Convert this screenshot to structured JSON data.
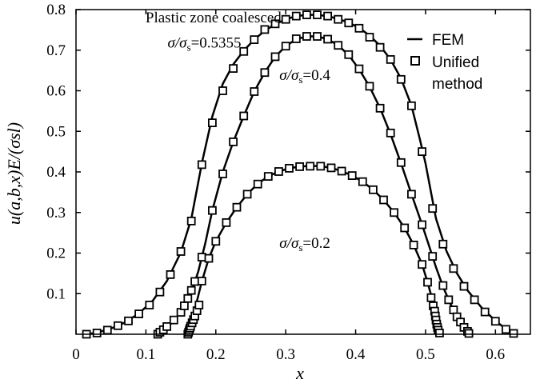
{
  "chart_data": {
    "type": "line",
    "xlabel": "x",
    "ylabel": "u(a,b,x)E/(σsl)",
    "xlim": [
      0,
      0.65
    ],
    "ylim": [
      0,
      0.8
    ],
    "xticks": [
      0,
      0.1,
      0.2,
      0.3,
      0.4,
      0.5,
      0.6
    ],
    "xtick_labels": [
      "0",
      "0.1",
      "0.2",
      "0.3",
      "0.4",
      "0.5",
      "0.6"
    ],
    "yticks": [
      0.1,
      0.2,
      0.3,
      0.4,
      0.5,
      0.6,
      0.7,
      0.8
    ],
    "ytick_labels": [
      "0.1",
      "0.2",
      "0.3",
      "0.4",
      "0.5",
      "0.6",
      "0.7",
      "0.8"
    ],
    "grid": false,
    "legend_position": "top-right",
    "legend": [
      {
        "label": "FEM",
        "style": "line"
      },
      {
        "label": "Unified\nmethod",
        "style": "square-marker"
      }
    ],
    "annotations": [
      {
        "text": "Plastic zone coalesced",
        "x": 0.0995,
        "y": 0.768
      },
      {
        "text": "σ/σs=0.5355",
        "x": 0.131,
        "y": 0.706
      },
      {
        "text": "σ/σs=0.4",
        "x": 0.291,
        "y": 0.627
      },
      {
        "text": "σ/σs=0.2",
        "x": 0.291,
        "y": 0.213
      }
    ],
    "series": [
      {
        "ratio": "0.5355",
        "line_points": [
          [
            0.015,
            0.0
          ],
          [
            0.03,
            0.004
          ],
          [
            0.05,
            0.014
          ],
          [
            0.07,
            0.029
          ],
          [
            0.09,
            0.051
          ],
          [
            0.11,
            0.083
          ],
          [
            0.13,
            0.131
          ],
          [
            0.15,
            0.202
          ],
          [
            0.165,
            0.285
          ],
          [
            0.18,
            0.421
          ],
          [
            0.195,
            0.537
          ],
          [
            0.21,
            0.617
          ],
          [
            0.225,
            0.665
          ],
          [
            0.24,
            0.699
          ],
          [
            0.255,
            0.726
          ],
          [
            0.27,
            0.748
          ],
          [
            0.285,
            0.764
          ],
          [
            0.3,
            0.776
          ],
          [
            0.315,
            0.784
          ],
          [
            0.33,
            0.787
          ],
          [
            0.345,
            0.787
          ],
          [
            0.36,
            0.784
          ],
          [
            0.375,
            0.777
          ],
          [
            0.39,
            0.768
          ],
          [
            0.405,
            0.755
          ],
          [
            0.42,
            0.736
          ],
          [
            0.435,
            0.711
          ],
          [
            0.45,
            0.677
          ],
          [
            0.465,
            0.63
          ],
          [
            0.48,
            0.563
          ],
          [
            0.492,
            0.48
          ],
          [
            0.5,
            0.421
          ],
          [
            0.515,
            0.285
          ],
          [
            0.53,
            0.205
          ],
          [
            0.545,
            0.15
          ],
          [
            0.56,
            0.108
          ],
          [
            0.58,
            0.066
          ],
          [
            0.6,
            0.033
          ],
          [
            0.615,
            0.013
          ],
          [
            0.626,
            0.002
          ]
        ],
        "marker_points": [
          [
            0.015,
            0.0
          ],
          [
            0.03,
            0.003
          ],
          [
            0.045,
            0.01
          ],
          [
            0.06,
            0.021
          ],
          [
            0.075,
            0.033
          ],
          [
            0.09,
            0.05
          ],
          [
            0.105,
            0.072
          ],
          [
            0.12,
            0.104
          ],
          [
            0.135,
            0.147
          ],
          [
            0.15,
            0.204
          ],
          [
            0.165,
            0.279
          ],
          [
            0.18,
            0.418
          ],
          [
            0.195,
            0.521
          ],
          [
            0.21,
            0.6
          ],
          [
            0.225,
            0.655
          ],
          [
            0.24,
            0.697
          ],
          [
            0.255,
            0.726
          ],
          [
            0.27,
            0.751
          ],
          [
            0.285,
            0.765
          ],
          [
            0.3,
            0.776
          ],
          [
            0.315,
            0.784
          ],
          [
            0.33,
            0.787
          ],
          [
            0.345,
            0.787
          ],
          [
            0.36,
            0.784
          ],
          [
            0.375,
            0.776
          ],
          [
            0.39,
            0.767
          ],
          [
            0.405,
            0.754
          ],
          [
            0.42,
            0.732
          ],
          [
            0.435,
            0.707
          ],
          [
            0.45,
            0.677
          ],
          [
            0.465,
            0.628
          ],
          [
            0.48,
            0.563
          ],
          [
            0.495,
            0.45
          ],
          [
            0.51,
            0.31
          ],
          [
            0.525,
            0.222
          ],
          [
            0.54,
            0.162
          ],
          [
            0.555,
            0.118
          ],
          [
            0.57,
            0.085
          ],
          [
            0.585,
            0.055
          ],
          [
            0.6,
            0.032
          ],
          [
            0.615,
            0.012
          ],
          [
            0.626,
            0.002
          ]
        ]
      },
      {
        "ratio": "0.4",
        "line_points": [
          [
            0.115,
            0.0
          ],
          [
            0.125,
            0.01
          ],
          [
            0.14,
            0.032
          ],
          [
            0.155,
            0.068
          ],
          [
            0.165,
            0.103
          ],
          [
            0.175,
            0.155
          ],
          [
            0.185,
            0.225
          ],
          [
            0.195,
            0.305
          ],
          [
            0.21,
            0.4
          ],
          [
            0.225,
            0.474
          ],
          [
            0.24,
            0.538
          ],
          [
            0.255,
            0.598
          ],
          [
            0.27,
            0.645
          ],
          [
            0.285,
            0.684
          ],
          [
            0.3,
            0.71
          ],
          [
            0.315,
            0.727
          ],
          [
            0.33,
            0.734
          ],
          [
            0.345,
            0.734
          ],
          [
            0.36,
            0.727
          ],
          [
            0.375,
            0.712
          ],
          [
            0.39,
            0.688
          ],
          [
            0.405,
            0.653
          ],
          [
            0.42,
            0.61
          ],
          [
            0.435,
            0.557
          ],
          [
            0.45,
            0.493
          ],
          [
            0.465,
            0.421
          ],
          [
            0.48,
            0.345
          ],
          [
            0.495,
            0.27
          ],
          [
            0.505,
            0.218
          ],
          [
            0.515,
            0.165
          ],
          [
            0.525,
            0.117
          ],
          [
            0.535,
            0.077
          ],
          [
            0.545,
            0.043
          ],
          [
            0.555,
            0.017
          ],
          [
            0.562,
            0.003
          ]
        ],
        "marker_points": [
          [
            0.117,
            0.0
          ],
          [
            0.12,
            0.005
          ],
          [
            0.125,
            0.011
          ],
          [
            0.13,
            0.019
          ],
          [
            0.14,
            0.035
          ],
          [
            0.15,
            0.054
          ],
          [
            0.155,
            0.07
          ],
          [
            0.16,
            0.088
          ],
          [
            0.165,
            0.108
          ],
          [
            0.17,
            0.13
          ],
          [
            0.18,
            0.19
          ],
          [
            0.195,
            0.305
          ],
          [
            0.21,
            0.395
          ],
          [
            0.225,
            0.474
          ],
          [
            0.24,
            0.538
          ],
          [
            0.255,
            0.598
          ],
          [
            0.27,
            0.645
          ],
          [
            0.285,
            0.684
          ],
          [
            0.3,
            0.71
          ],
          [
            0.315,
            0.728
          ],
          [
            0.33,
            0.734
          ],
          [
            0.345,
            0.734
          ],
          [
            0.36,
            0.727
          ],
          [
            0.375,
            0.712
          ],
          [
            0.39,
            0.689
          ],
          [
            0.405,
            0.654
          ],
          [
            0.42,
            0.611
          ],
          [
            0.435,
            0.557
          ],
          [
            0.45,
            0.496
          ],
          [
            0.465,
            0.423
          ],
          [
            0.48,
            0.345
          ],
          [
            0.495,
            0.27
          ],
          [
            0.51,
            0.192
          ],
          [
            0.525,
            0.12
          ],
          [
            0.533,
            0.085
          ],
          [
            0.54,
            0.06
          ],
          [
            0.545,
            0.043
          ],
          [
            0.55,
            0.03
          ],
          [
            0.555,
            0.017
          ],
          [
            0.56,
            0.007
          ],
          [
            0.562,
            0.002
          ]
        ]
      },
      {
        "ratio": "0.2",
        "line_points": [
          [
            0.16,
            0.0
          ],
          [
            0.163,
            0.015
          ],
          [
            0.167,
            0.04
          ],
          [
            0.172,
            0.075
          ],
          [
            0.18,
            0.13
          ],
          [
            0.19,
            0.187
          ],
          [
            0.2,
            0.229
          ],
          [
            0.215,
            0.275
          ],
          [
            0.23,
            0.313
          ],
          [
            0.245,
            0.345
          ],
          [
            0.26,
            0.371
          ],
          [
            0.275,
            0.389
          ],
          [
            0.29,
            0.401
          ],
          [
            0.305,
            0.409
          ],
          [
            0.32,
            0.413
          ],
          [
            0.335,
            0.415
          ],
          [
            0.35,
            0.414
          ],
          [
            0.365,
            0.41
          ],
          [
            0.38,
            0.402
          ],
          [
            0.395,
            0.391
          ],
          [
            0.41,
            0.376
          ],
          [
            0.425,
            0.356
          ],
          [
            0.44,
            0.331
          ],
          [
            0.455,
            0.3
          ],
          [
            0.47,
            0.262
          ],
          [
            0.483,
            0.22
          ],
          [
            0.495,
            0.172
          ],
          [
            0.503,
            0.128
          ],
          [
            0.51,
            0.083
          ],
          [
            0.515,
            0.045
          ],
          [
            0.52,
            0.01
          ],
          [
            0.521,
            0.0
          ]
        ],
        "marker_points": [
          [
            0.16,
            0.0
          ],
          [
            0.161,
            0.005
          ],
          [
            0.162,
            0.01
          ],
          [
            0.163,
            0.015
          ],
          [
            0.164,
            0.02
          ],
          [
            0.166,
            0.028
          ],
          [
            0.168,
            0.036
          ],
          [
            0.17,
            0.045
          ],
          [
            0.173,
            0.058
          ],
          [
            0.176,
            0.072
          ],
          [
            0.18,
            0.131
          ],
          [
            0.19,
            0.187
          ],
          [
            0.2,
            0.229
          ],
          [
            0.215,
            0.275
          ],
          [
            0.23,
            0.313
          ],
          [
            0.245,
            0.345
          ],
          [
            0.26,
            0.37
          ],
          [
            0.275,
            0.389
          ],
          [
            0.29,
            0.401
          ],
          [
            0.305,
            0.409
          ],
          [
            0.32,
            0.413
          ],
          [
            0.335,
            0.414
          ],
          [
            0.35,
            0.414
          ],
          [
            0.365,
            0.41
          ],
          [
            0.38,
            0.402
          ],
          [
            0.395,
            0.391
          ],
          [
            0.41,
            0.376
          ],
          [
            0.425,
            0.356
          ],
          [
            0.44,
            0.331
          ],
          [
            0.455,
            0.3
          ],
          [
            0.47,
            0.262
          ],
          [
            0.483,
            0.22
          ],
          [
            0.495,
            0.172
          ],
          [
            0.503,
            0.128
          ],
          [
            0.508,
            0.09
          ],
          [
            0.511,
            0.07
          ],
          [
            0.513,
            0.057
          ],
          [
            0.514,
            0.045
          ],
          [
            0.515,
            0.035
          ],
          [
            0.516,
            0.025
          ],
          [
            0.517,
            0.017
          ],
          [
            0.518,
            0.01
          ],
          [
            0.52,
            0.003
          ]
        ]
      }
    ]
  }
}
